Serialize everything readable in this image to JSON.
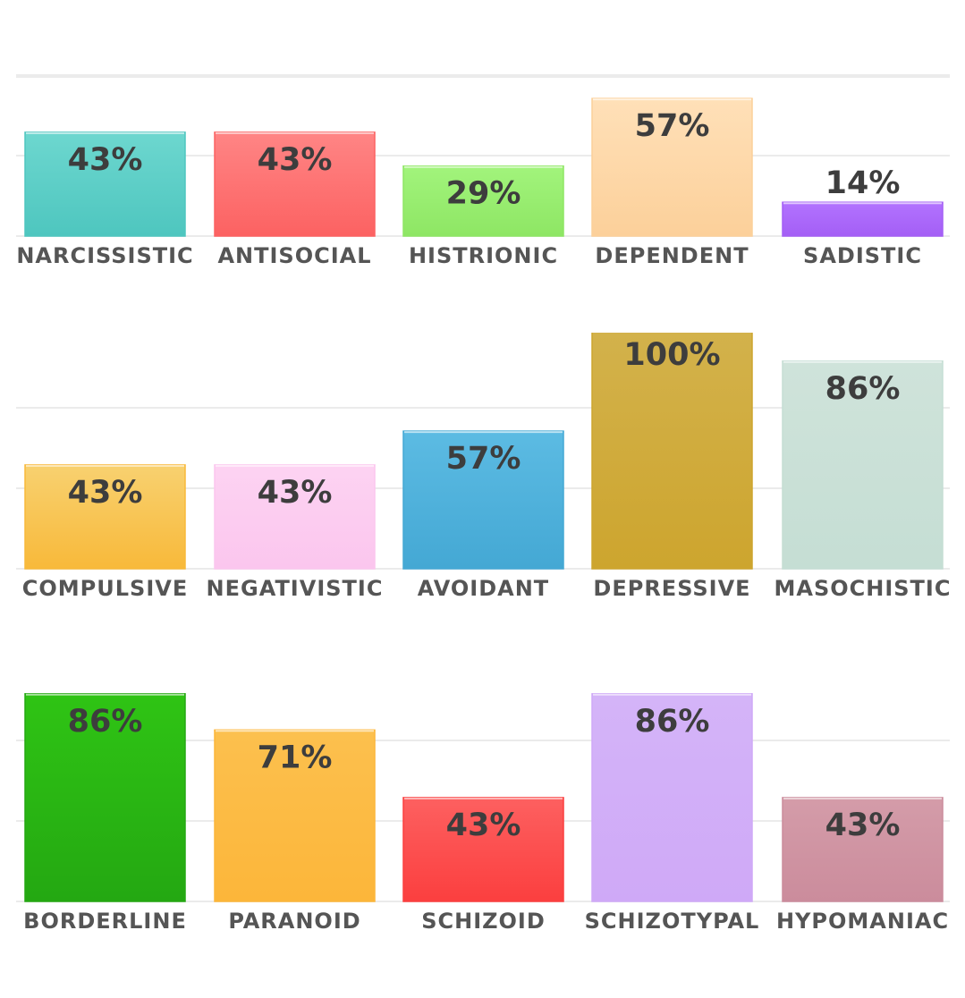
{
  "chart_data": [
    {
      "type": "bar",
      "ylim": [
        0,
        100
      ],
      "grid": true,
      "categories": [
        "NARCISSISTIC",
        "ANTISOCIAL",
        "HISTRIONIC",
        "DEPENDENT",
        "SADISTIC"
      ],
      "values": [
        43,
        43,
        29,
        57,
        14
      ],
      "labels": [
        "43%",
        "43%",
        "29%",
        "57%",
        "14%"
      ],
      "colors": [
        [
          "#6dd7cf",
          "#4ec6bf"
        ],
        [
          "#ff8585",
          "#fc6262"
        ],
        [
          "#a2f47c",
          "#8ee664"
        ],
        [
          "#ffe0b8",
          "#fcd09a"
        ],
        [
          "#b272ff",
          "#a45ff5"
        ]
      ]
    },
    {
      "type": "bar",
      "ylim": [
        0,
        100
      ],
      "grid": true,
      "categories": [
        "COMPULSIVE",
        "NEGATIVISTIC",
        "AVOIDANT",
        "DEPRESSIVE",
        "MASOCHISTIC"
      ],
      "values": [
        43,
        43,
        57,
        100,
        86
      ],
      "labels": [
        "43%",
        "43%",
        "57%",
        "100%",
        "86%"
      ],
      "colors": [
        [
          "#f8d170",
          "#f8b93a"
        ],
        [
          "#fdd3f2",
          "#fbc6ee"
        ],
        [
          "#5cbbe3",
          "#44a8d4"
        ],
        [
          "#d3b24c",
          "#cda52e"
        ],
        [
          "#cfe3da",
          "#c5ded4"
        ]
      ]
    },
    {
      "type": "bar",
      "ylim": [
        0,
        100
      ],
      "grid": true,
      "categories": [
        "BORDERLINE",
        "PARANOID",
        "SCHIZOID",
        "SCHIZOTYPAL",
        "HYPOMANIAC"
      ],
      "values": [
        86,
        71,
        43,
        86,
        43
      ],
      "labels": [
        "86%",
        "71%",
        "43%",
        "86%",
        "43%"
      ],
      "colors": [
        [
          "#2fc414",
          "#24a812"
        ],
        [
          "#fcc04e",
          "#fcb63a"
        ],
        [
          "#fd6060",
          "#fb3f3f"
        ],
        [
          "#d4b4f8",
          "#cfa9f7"
        ],
        [
          "#d49ca9",
          "#cb8c9c"
        ]
      ]
    }
  ]
}
